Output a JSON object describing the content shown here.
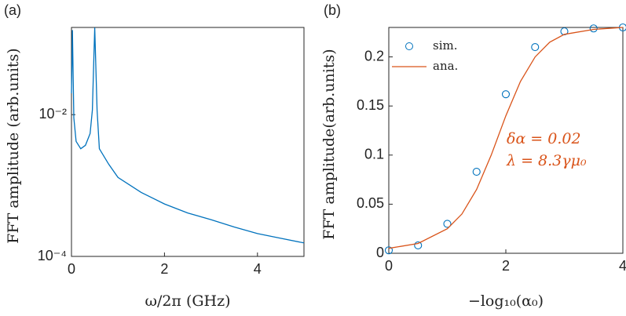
{
  "chart_data": [
    {
      "type": "line",
      "panel_label": "(a)",
      "xlabel": "ω/2π (GHz)",
      "ylabel": "FFT amplitude (arb.units)",
      "log_y": true,
      "xlim": [
        0,
        5
      ],
      "ylim": [
        0.0001,
        0.17
      ],
      "xticks": [
        0,
        2,
        4
      ],
      "yticks": [
        {
          "value": 0.0001,
          "label": "10⁻⁴"
        },
        {
          "value": 0.01,
          "label": "10⁻²"
        }
      ],
      "series": [
        {
          "color": "#0072bd",
          "mode": "line",
          "x": [
            0,
            0.02,
            0.05,
            0.1,
            0.2,
            0.3,
            0.4,
            0.45,
            0.5,
            0.55,
            0.6,
            0.8,
            1.0,
            1.5,
            2.0,
            2.5,
            3.0,
            3.5,
            4.0,
            4.5,
            5.0
          ],
          "values": [
            0.02,
            0.156,
            0.009,
            0.0042,
            0.0033,
            0.0037,
            0.0054,
            0.0116,
            0.169,
            0.0116,
            0.0033,
            0.002,
            0.0013,
            0.0008,
            0.00055,
            0.00041,
            0.00033,
            0.00026,
            0.00021,
            0.00018,
            0.000155
          ]
        }
      ]
    },
    {
      "type": "line",
      "panel_label": "(b)",
      "xlabel": "−log₁₀(α₀)",
      "ylabel": "FFT amplitude(arb.units)",
      "log_y": false,
      "xlim": [
        0,
        4
      ],
      "ylim": [
        0,
        0.23
      ],
      "xticks": [
        0,
        2,
        4
      ],
      "yticks": [
        0,
        0.05,
        0.1,
        0.15,
        0.2
      ],
      "legend": "northwest",
      "annotations": [
        "δα = 0.02",
        "λ = 8.3γμ₀"
      ],
      "annotation_color": "#d95319",
      "series": [
        {
          "name": "sim.",
          "color": "#0072bd",
          "mode": "markers",
          "x": [
            0,
            0.5,
            1,
            1.5,
            2,
            2.5,
            3,
            3.5,
            4
          ],
          "values": [
            0.003,
            0.008,
            0.03,
            0.083,
            0.162,
            0.21,
            0.226,
            0.229,
            0.23
          ]
        },
        {
          "name": "ana.",
          "color": "#d95319",
          "mode": "line",
          "x": [
            0,
            0.5,
            1,
            1.25,
            1.5,
            1.75,
            2,
            2.25,
            2.5,
            2.75,
            3,
            3.5,
            4
          ],
          "values": [
            0.005,
            0.01,
            0.025,
            0.04,
            0.065,
            0.1,
            0.14,
            0.175,
            0.2,
            0.215,
            0.223,
            0.228,
            0.23
          ]
        }
      ]
    }
  ]
}
